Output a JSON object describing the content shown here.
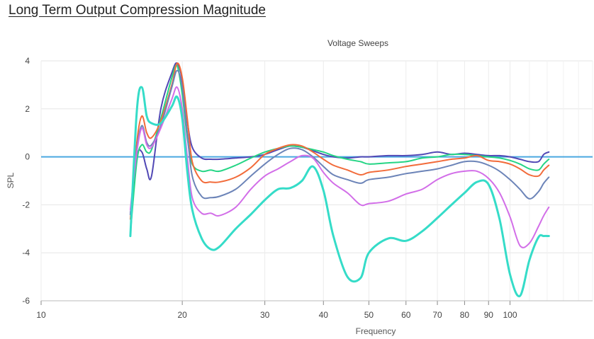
{
  "page": {
    "heading": "Long Term Output Compression Magnitude"
  },
  "chart_data": {
    "type": "line",
    "title": "Voltage Sweeps",
    "xlabel": "Frequency",
    "ylabel": "SPL",
    "x_scale": "log",
    "xlim": [
      10,
      150
    ],
    "ylim": [
      -6,
      4
    ],
    "x_ticks": [
      10,
      20,
      30,
      40,
      50,
      60,
      70,
      80,
      90,
      100
    ],
    "y_ticks": [
      4,
      2,
      0,
      -2,
      -4,
      -6
    ],
    "grid": true,
    "legend": "none",
    "reference_line": {
      "y": 0,
      "color": "#4aa8e0"
    },
    "series": [
      {
        "color": "#5148b5",
        "points": [
          [
            15.5,
            -2.4
          ],
          [
            16,
            0
          ],
          [
            16.4,
            0.2
          ],
          [
            16.8,
            -0.5
          ],
          [
            17.2,
            -0.8
          ],
          [
            18,
            2
          ],
          [
            19,
            3.5
          ],
          [
            19.5,
            3.9
          ],
          [
            20,
            3.2
          ],
          [
            20.5,
            1.5
          ],
          [
            21,
            0.4
          ],
          [
            22,
            -0.05
          ],
          [
            23,
            -0.1
          ],
          [
            24,
            -0.1
          ],
          [
            26,
            -0.05
          ],
          [
            28,
            0
          ],
          [
            30,
            0.1
          ],
          [
            32,
            0.3
          ],
          [
            34,
            0.45
          ],
          [
            36,
            0.4
          ],
          [
            38,
            0.25
          ],
          [
            40,
            0.1
          ],
          [
            42,
            0
          ],
          [
            45,
            -0.05
          ],
          [
            48,
            0
          ],
          [
            50,
            0
          ],
          [
            55,
            0.05
          ],
          [
            60,
            0.05
          ],
          [
            65,
            0.1
          ],
          [
            70,
            0.2
          ],
          [
            75,
            0.1
          ],
          [
            80,
            0.15
          ],
          [
            85,
            0.1
          ],
          [
            90,
            0.05
          ],
          [
            95,
            0.05
          ],
          [
            100,
            0
          ],
          [
            105,
            -0.1
          ],
          [
            110,
            -0.2
          ],
          [
            115,
            -0.2
          ],
          [
            118,
            0.1
          ],
          [
            121,
            0.2
          ]
        ]
      },
      {
        "color": "#25d585",
        "points": [
          [
            15.5,
            -3.2
          ],
          [
            16,
            -0.2
          ],
          [
            16.4,
            0.5
          ],
          [
            16.8,
            0.2
          ],
          [
            17.2,
            0.3
          ],
          [
            18,
            1.6
          ],
          [
            19,
            3.3
          ],
          [
            19.5,
            3.8
          ],
          [
            20,
            2.6
          ],
          [
            20.5,
            0.8
          ],
          [
            21,
            -0.3
          ],
          [
            22,
            -0.6
          ],
          [
            23,
            -0.55
          ],
          [
            24,
            -0.6
          ],
          [
            26,
            -0.35
          ],
          [
            28,
            -0.05
          ],
          [
            30,
            0.2
          ],
          [
            32,
            0.35
          ],
          [
            34,
            0.45
          ],
          [
            36,
            0.4
          ],
          [
            38,
            0.3
          ],
          [
            40,
            0.2
          ],
          [
            42,
            0.05
          ],
          [
            45,
            -0.1
          ],
          [
            48,
            -0.2
          ],
          [
            50,
            -0.3
          ],
          [
            55,
            -0.25
          ],
          [
            60,
            -0.2
          ],
          [
            65,
            -0.05
          ],
          [
            70,
            0
          ],
          [
            75,
            0.1
          ],
          [
            80,
            0.1
          ],
          [
            85,
            0.05
          ],
          [
            90,
            0
          ],
          [
            95,
            -0.05
          ],
          [
            100,
            -0.15
          ],
          [
            105,
            -0.3
          ],
          [
            110,
            -0.5
          ],
          [
            115,
            -0.55
          ],
          [
            118,
            -0.3
          ],
          [
            121,
            -0.1
          ]
        ]
      },
      {
        "color": "#f26b3a",
        "points": [
          [
            15.5,
            -2.6
          ],
          [
            16,
            0.6
          ],
          [
            16.4,
            1.7
          ],
          [
            16.8,
            1.0
          ],
          [
            17.2,
            0.8
          ],
          [
            18,
            1.5
          ],
          [
            19,
            3.0
          ],
          [
            19.5,
            3.9
          ],
          [
            20,
            3.3
          ],
          [
            20.5,
            1.6
          ],
          [
            21,
            -0.2
          ],
          [
            22,
            -1.0
          ],
          [
            23,
            -1.05
          ],
          [
            24,
            -1.05
          ],
          [
            26,
            -0.85
          ],
          [
            28,
            -0.45
          ],
          [
            30,
            0.1
          ],
          [
            32,
            0.35
          ],
          [
            34,
            0.5
          ],
          [
            36,
            0.45
          ],
          [
            38,
            0.2
          ],
          [
            40,
            -0.1
          ],
          [
            42,
            -0.35
          ],
          [
            45,
            -0.55
          ],
          [
            48,
            -0.75
          ],
          [
            50,
            -0.65
          ],
          [
            55,
            -0.55
          ],
          [
            60,
            -0.4
          ],
          [
            65,
            -0.3
          ],
          [
            70,
            -0.2
          ],
          [
            75,
            -0.1
          ],
          [
            80,
            -0.05
          ],
          [
            85,
            0.05
          ],
          [
            90,
            -0.15
          ],
          [
            95,
            -0.2
          ],
          [
            100,
            -0.3
          ],
          [
            105,
            -0.5
          ],
          [
            110,
            -0.75
          ],
          [
            115,
            -0.8
          ],
          [
            118,
            -0.55
          ],
          [
            121,
            -0.35
          ]
        ]
      },
      {
        "color": "#6c84b8",
        "points": [
          [
            15.5,
            -2.4
          ],
          [
            16,
            0.3
          ],
          [
            16.4,
            1.3
          ],
          [
            16.8,
            0.6
          ],
          [
            17.2,
            0.5
          ],
          [
            18,
            1.3
          ],
          [
            19,
            2.9
          ],
          [
            19.5,
            3.6
          ],
          [
            20,
            2.9
          ],
          [
            20.5,
            1.0
          ],
          [
            21,
            -0.8
          ],
          [
            22,
            -1.65
          ],
          [
            23,
            -1.7
          ],
          [
            24,
            -1.65
          ],
          [
            26,
            -1.35
          ],
          [
            28,
            -0.8
          ],
          [
            30,
            -0.3
          ],
          [
            32,
            0.1
          ],
          [
            34,
            0.35
          ],
          [
            36,
            0.3
          ],
          [
            38,
            0.0
          ],
          [
            40,
            -0.4
          ],
          [
            42,
            -0.75
          ],
          [
            45,
            -0.95
          ],
          [
            48,
            -1.1
          ],
          [
            50,
            -0.95
          ],
          [
            55,
            -0.85
          ],
          [
            60,
            -0.7
          ],
          [
            65,
            -0.6
          ],
          [
            70,
            -0.5
          ],
          [
            75,
            -0.35
          ],
          [
            80,
            -0.2
          ],
          [
            85,
            -0.2
          ],
          [
            90,
            -0.35
          ],
          [
            95,
            -0.6
          ],
          [
            100,
            -0.95
          ],
          [
            105,
            -1.35
          ],
          [
            110,
            -1.75
          ],
          [
            115,
            -1.45
          ],
          [
            118,
            -1.1
          ],
          [
            121,
            -0.85
          ]
        ]
      },
      {
        "color": "#d26ee8",
        "points": [
          [
            15.5,
            -2.2
          ],
          [
            16,
            0.2
          ],
          [
            16.4,
            1.2
          ],
          [
            16.8,
            0.5
          ],
          [
            17.2,
            0.4
          ],
          [
            18,
            1.2
          ],
          [
            19,
            2.4
          ],
          [
            19.5,
            2.9
          ],
          [
            20,
            2.0
          ],
          [
            20.5,
            0.0
          ],
          [
            21,
            -1.7
          ],
          [
            22,
            -2.35
          ],
          [
            23,
            -2.35
          ],
          [
            24,
            -2.45
          ],
          [
            26,
            -2.1
          ],
          [
            28,
            -1.35
          ],
          [
            30,
            -0.8
          ],
          [
            32,
            -0.5
          ],
          [
            34,
            -0.2
          ],
          [
            36,
            0.05
          ],
          [
            38,
            -0.05
          ],
          [
            40,
            -0.65
          ],
          [
            42,
            -1.1
          ],
          [
            45,
            -1.5
          ],
          [
            48,
            -2.0
          ],
          [
            50,
            -1.95
          ],
          [
            55,
            -1.85
          ],
          [
            60,
            -1.55
          ],
          [
            65,
            -1.35
          ],
          [
            70,
            -0.95
          ],
          [
            75,
            -0.7
          ],
          [
            80,
            -0.6
          ],
          [
            85,
            -0.6
          ],
          [
            90,
            -0.9
          ],
          [
            95,
            -1.5
          ],
          [
            100,
            -2.5
          ],
          [
            105,
            -3.7
          ],
          [
            110,
            -3.6
          ],
          [
            115,
            -2.9
          ],
          [
            118,
            -2.45
          ],
          [
            121,
            -2.1
          ]
        ]
      },
      {
        "color": "#35dcc8",
        "points": [
          [
            15.5,
            -3.3
          ],
          [
            16,
            1.9
          ],
          [
            16.4,
            2.9
          ],
          [
            16.8,
            1.7
          ],
          [
            17.2,
            1.4
          ],
          [
            18,
            1.4
          ],
          [
            19,
            2.1
          ],
          [
            19.5,
            2.5
          ],
          [
            20,
            1.6
          ],
          [
            20.5,
            -0.6
          ],
          [
            21,
            -2.2
          ],
          [
            22,
            -3.4
          ],
          [
            23,
            -3.85
          ],
          [
            24,
            -3.75
          ],
          [
            26,
            -3.0
          ],
          [
            28,
            -2.4
          ],
          [
            30,
            -1.8
          ],
          [
            32,
            -1.35
          ],
          [
            34,
            -1.3
          ],
          [
            36,
            -1.0
          ],
          [
            38,
            -0.4
          ],
          [
            40,
            -1.4
          ],
          [
            42,
            -3.3
          ],
          [
            45,
            -5.0
          ],
          [
            48,
            -5.05
          ],
          [
            50,
            -4.0
          ],
          [
            55,
            -3.4
          ],
          [
            60,
            -3.5
          ],
          [
            65,
            -3.1
          ],
          [
            70,
            -2.55
          ],
          [
            75,
            -2.0
          ],
          [
            80,
            -1.5
          ],
          [
            85,
            -1.05
          ],
          [
            90,
            -1.15
          ],
          [
            95,
            -2.6
          ],
          [
            100,
            -4.9
          ],
          [
            105,
            -5.8
          ],
          [
            110,
            -4.3
          ],
          [
            115,
            -3.35
          ],
          [
            118,
            -3.3
          ],
          [
            121,
            -3.3
          ]
        ]
      }
    ]
  }
}
